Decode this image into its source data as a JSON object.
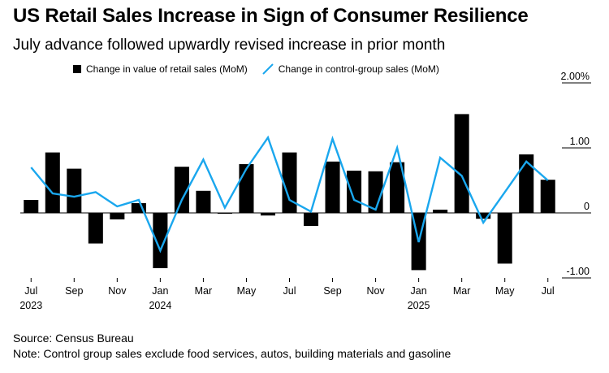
{
  "header": {
    "title": "US Retail Sales Increase in Sign of Consumer Resilience",
    "subtitle": "July advance followed upwardly revised increase in prior month"
  },
  "legend": {
    "bar_label": "Change in value of retail sales (MoM)",
    "line_label": "Change in control-group sales (MoM)"
  },
  "footer": {
    "source": "Source: Census Bureau",
    "note": "Note: Control group sales exclude food services, autos, building materials and gasoline"
  },
  "colors": {
    "bar": "#000000",
    "line": "#1aa7ee",
    "zero_line": "#000000"
  },
  "chart_data": {
    "type": "bar",
    "categories": [
      "2023-07",
      "2023-08",
      "2023-09",
      "2023-10",
      "2023-11",
      "2023-12",
      "2024-01",
      "2024-02",
      "2024-03",
      "2024-04",
      "2024-05",
      "2024-06",
      "2024-07",
      "2024-08",
      "2024-09",
      "2024-10",
      "2024-11",
      "2024-12",
      "2025-01",
      "2025-02",
      "2025-03",
      "2025-04",
      "2025-05",
      "2025-06",
      "2025-07"
    ],
    "series": [
      {
        "name": "Change in value of retail sales (MoM)",
        "type": "bar",
        "values": [
          0.2,
          0.93,
          0.68,
          -0.47,
          -0.1,
          0.15,
          -0.85,
          0.71,
          0.34,
          -0.01,
          0.75,
          -0.04,
          0.93,
          -0.2,
          0.79,
          0.65,
          0.64,
          0.78,
          -0.88,
          0.05,
          1.52,
          -0.09,
          -0.78,
          0.9,
          0.51
        ]
      },
      {
        "name": "Change in control-group sales (MoM)",
        "type": "line",
        "values": [
          0.7,
          0.3,
          0.25,
          0.32,
          0.1,
          0.2,
          -0.58,
          0.2,
          0.82,
          0.08,
          0.68,
          1.16,
          0.2,
          0.02,
          1.14,
          0.2,
          0.05,
          1.0,
          -0.45,
          0.85,
          0.57,
          -0.15,
          0.32,
          0.79,
          0.5
        ]
      }
    ],
    "x_tick_labels": [
      {
        "index": 0,
        "month": "Jul",
        "year": "2023"
      },
      {
        "index": 2,
        "month": "Sep",
        "year": ""
      },
      {
        "index": 4,
        "month": "Nov",
        "year": ""
      },
      {
        "index": 6,
        "month": "Jan",
        "year": "2024"
      },
      {
        "index": 8,
        "month": "Mar",
        "year": ""
      },
      {
        "index": 10,
        "month": "May",
        "year": ""
      },
      {
        "index": 12,
        "month": "Jul",
        "year": ""
      },
      {
        "index": 14,
        "month": "Sep",
        "year": ""
      },
      {
        "index": 16,
        "month": "Nov",
        "year": ""
      },
      {
        "index": 18,
        "month": "Jan",
        "year": "2025"
      },
      {
        "index": 20,
        "month": "Mar",
        "year": ""
      },
      {
        "index": 22,
        "month": "May",
        "year": ""
      },
      {
        "index": 24,
        "month": "Jul",
        "year": ""
      }
    ],
    "y_ticks": [
      {
        "value": 2.0,
        "label": "2.00%"
      },
      {
        "value": 1.0,
        "label": "1.00"
      },
      {
        "value": 0.0,
        "label": "0"
      },
      {
        "value": -1.0,
        "label": "-1.00"
      }
    ],
    "ylim": [
      -1.0,
      2.0
    ],
    "y_axis_side": "right",
    "grid": false,
    "legend_position": "top"
  }
}
